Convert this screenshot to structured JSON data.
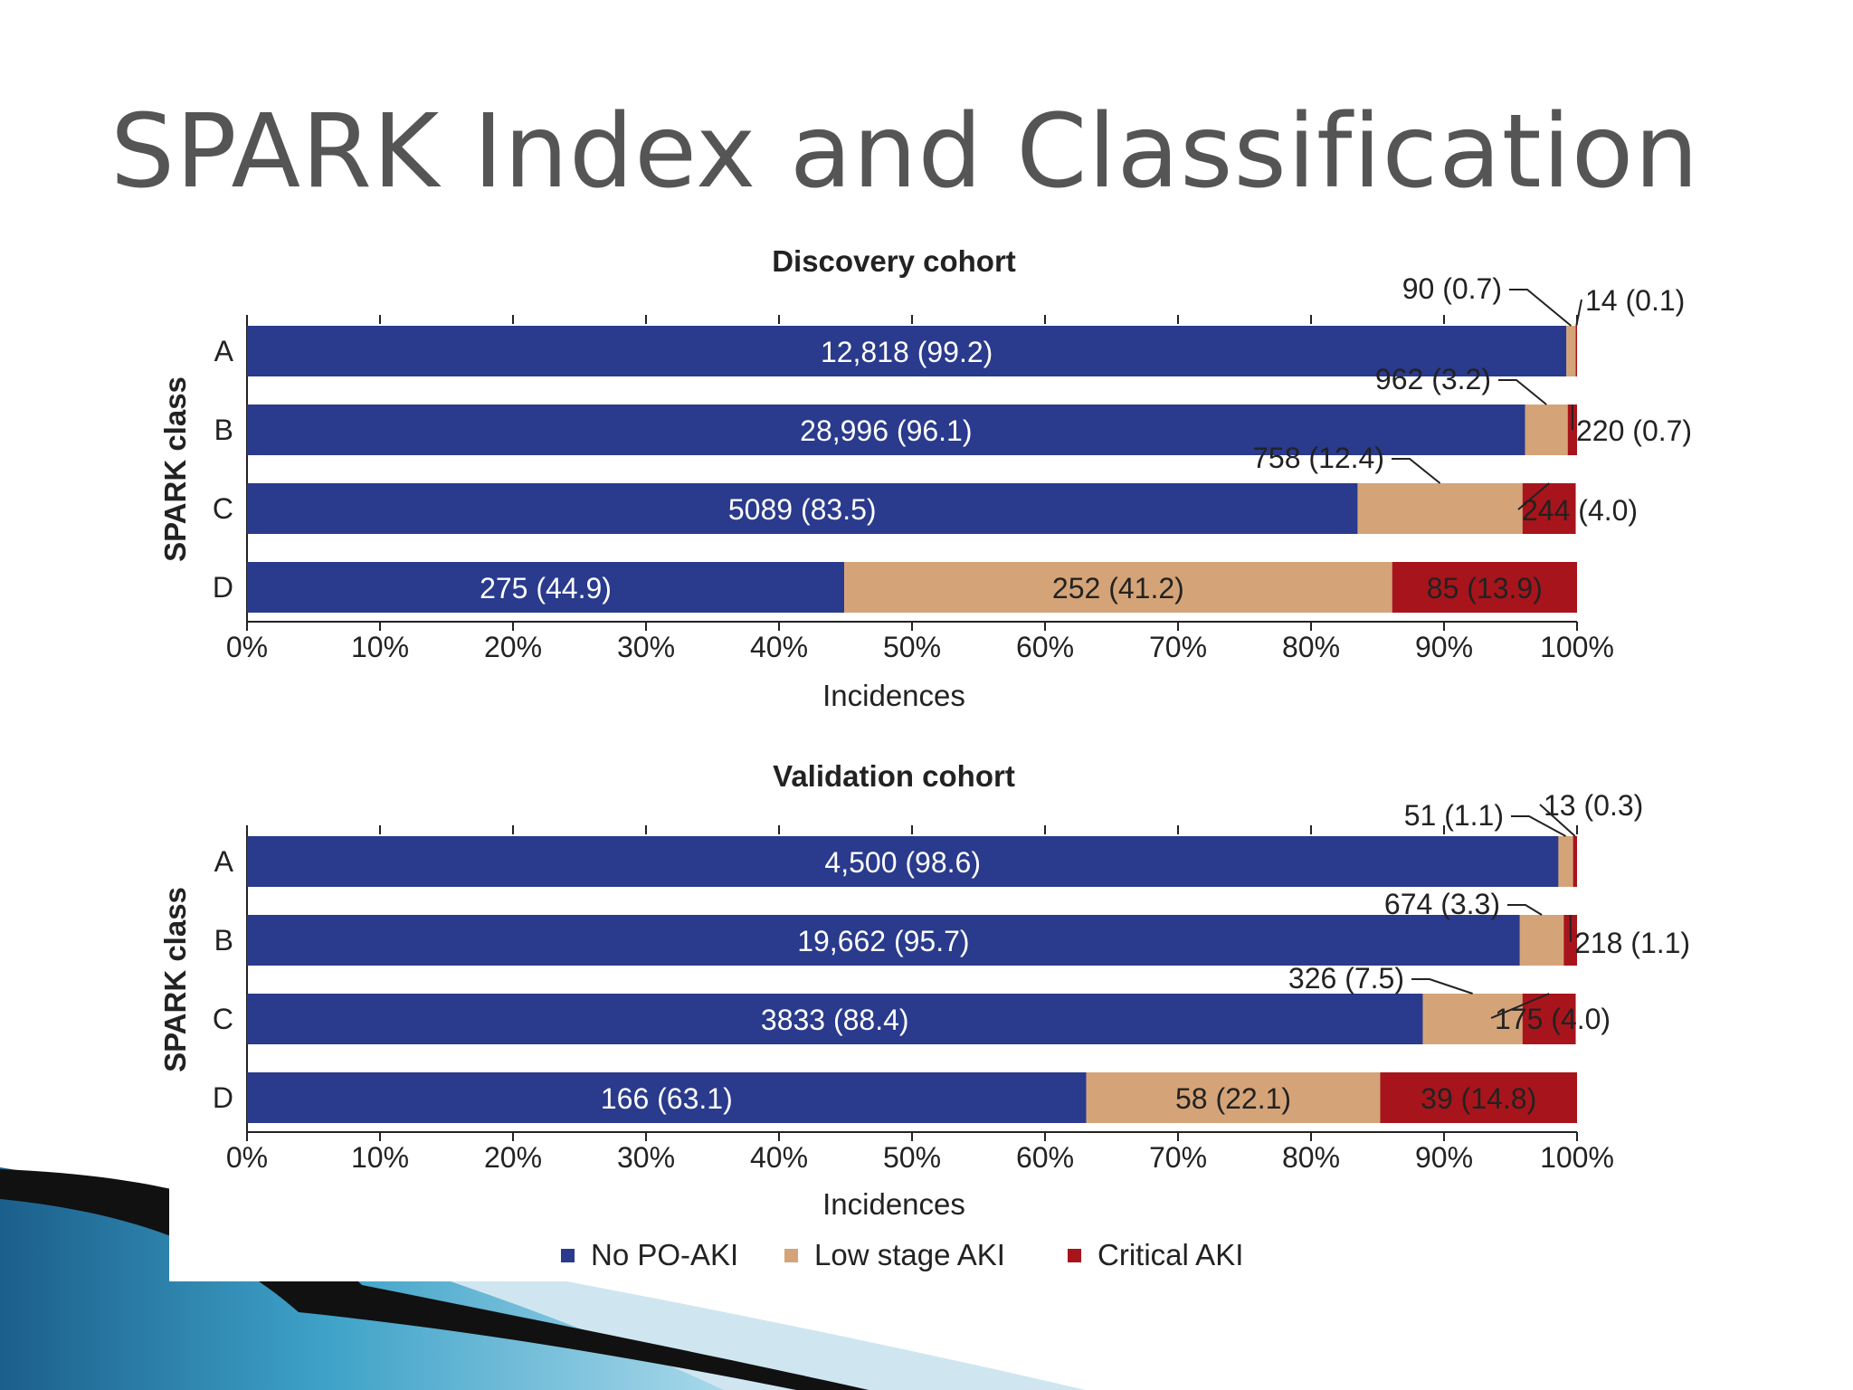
{
  "slide": {
    "title": "SPARK Index and Classification"
  },
  "colors": {
    "no_po_aki": "#2a3a8c",
    "low_stage_aki": "#d4a478",
    "critical_aki": "#a8141b",
    "text": "#222222",
    "title": "#555555"
  },
  "legend": {
    "placement": "bottom-center",
    "items": [
      "No PO-AKI",
      "Low stage AKI",
      "Critical AKI"
    ]
  },
  "chart_data": [
    {
      "type": "bar",
      "orientation": "horizontal",
      "stacked": "percent",
      "title": "Discovery cohort",
      "xlabel": "Incidences",
      "ylabel": "SPARK class",
      "xlim": [
        0,
        100
      ],
      "xticks": [
        "0%",
        "10%",
        "20%",
        "30%",
        "40%",
        "50%",
        "60%",
        "70%",
        "80%",
        "90%",
        "100%"
      ],
      "categories": [
        "A",
        "B",
        "C",
        "D"
      ],
      "series": [
        {
          "name": "No PO-AKI",
          "values": [
            99.2,
            96.1,
            83.5,
            44.9
          ],
          "labels": [
            "12,818 (99.2)",
            "28,996 (96.1)",
            "5089 (83.5)",
            "275 (44.9)"
          ]
        },
        {
          "name": "Low stage AKI",
          "values": [
            0.7,
            3.2,
            12.4,
            41.2
          ],
          "labels": [
            "90 (0.7)",
            "962 (3.2)",
            "758 (12.4)",
            "252 (41.2)"
          ]
        },
        {
          "name": "Critical AKI",
          "values": [
            0.1,
            0.7,
            4.0,
            13.9
          ],
          "labels": [
            "14 (0.1)",
            "220 (0.7)",
            "244 (4.0)",
            "85 (13.9)"
          ]
        }
      ]
    },
    {
      "type": "bar",
      "orientation": "horizontal",
      "stacked": "percent",
      "title": "Validation cohort",
      "xlabel": "Incidences",
      "ylabel": "SPARK class",
      "xlim": [
        0,
        100
      ],
      "xticks": [
        "0%",
        "10%",
        "20%",
        "30%",
        "40%",
        "50%",
        "60%",
        "70%",
        "80%",
        "90%",
        "100%"
      ],
      "categories": [
        "A",
        "B",
        "C",
        "D"
      ],
      "series": [
        {
          "name": "No PO-AKI",
          "values": [
            98.6,
            95.7,
            88.4,
            63.1
          ],
          "labels": [
            "4,500 (98.6)",
            "19,662 (95.7)",
            "3833 (88.4)",
            "166 (63.1)"
          ]
        },
        {
          "name": "Low stage AKI",
          "values": [
            1.1,
            3.3,
            7.5,
            22.1
          ],
          "labels": [
            "51 (1.1)",
            "674 (3.3)",
            "326 (7.5)",
            "58 (22.1)"
          ]
        },
        {
          "name": "Critical AKI",
          "values": [
            0.3,
            1.1,
            4.0,
            14.8
          ],
          "labels": [
            "13 (0.3)",
            "218 (1.1)",
            "175 (4.0)",
            "39 (14.8)"
          ]
        }
      ]
    }
  ]
}
